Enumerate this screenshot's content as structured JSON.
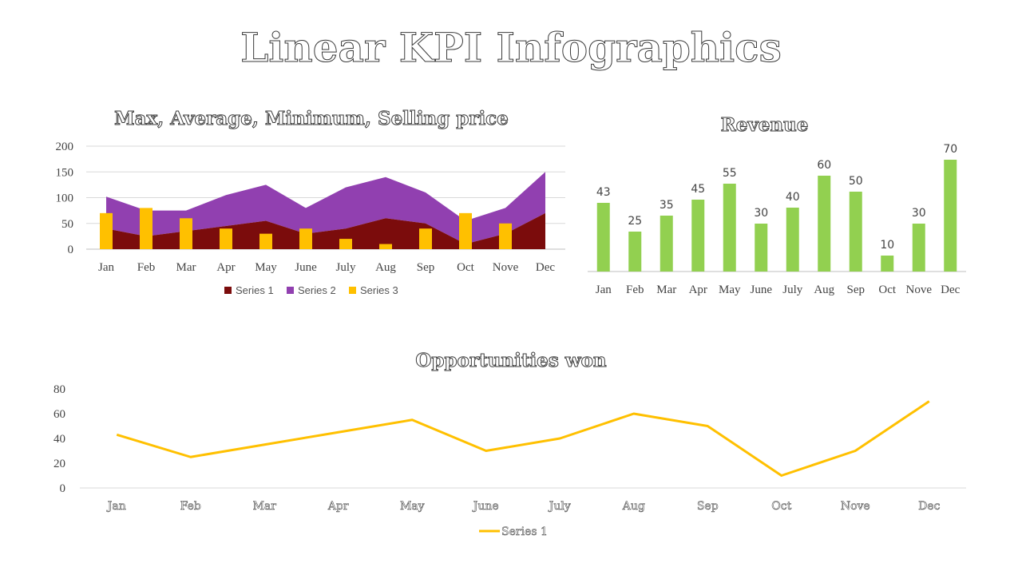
{
  "page_title": "Linear KPI Infographics",
  "chart_data": [
    {
      "type": "area",
      "title": "Max, Average, Minimum, Selling price",
      "categories": [
        "Jan",
        "Feb",
        "Mar",
        "Apr",
        "May",
        "June",
        "July",
        "Aug",
        "Sep",
        "Oct",
        "Nove",
        "Dec"
      ],
      "ylim": [
        0,
        200
      ],
      "yticks": [
        0,
        50,
        100,
        150,
        200
      ],
      "grid": true,
      "legend": "bottom",
      "series": [
        {
          "name": "Series 1",
          "type": "area",
          "color": "#7b0c0c",
          "values": [
            40,
            25,
            35,
            45,
            55,
            30,
            40,
            60,
            50,
            10,
            30,
            70
          ]
        },
        {
          "name": "Series 2",
          "type": "area",
          "color": "#9140b0",
          "values": [
            62,
            50,
            40,
            60,
            70,
            50,
            80,
            80,
            60,
            45,
            50,
            80
          ]
        },
        {
          "name": "Series 3",
          "type": "bar",
          "color": "#ffc000",
          "values": [
            70,
            80,
            60,
            40,
            30,
            40,
            20,
            10,
            40,
            70,
            50,
            0
          ]
        }
      ]
    },
    {
      "type": "bar",
      "title": "Revenue",
      "categories": [
        "Jan",
        "Feb",
        "Mar",
        "Apr",
        "May",
        "June",
        "July",
        "Aug",
        "Sep",
        "Oct",
        "Nove",
        "Dec"
      ],
      "values": [
        43,
        25,
        35,
        45,
        55,
        30,
        40,
        60,
        50,
        10,
        30,
        70
      ],
      "ylim": [
        0,
        70
      ],
      "color": "#92d050",
      "data_labels": true,
      "grid": false
    },
    {
      "type": "line",
      "title": "Opportunities won",
      "categories": [
        "Jan",
        "Feb",
        "Mar",
        "Apr",
        "May",
        "June",
        "July",
        "Aug",
        "Sep",
        "Oct",
        "Nove",
        "Dec"
      ],
      "ylim": [
        0,
        80
      ],
      "yticks": [
        0,
        20,
        40,
        60,
        80
      ],
      "grid": false,
      "legend": "bottom",
      "series": [
        {
          "name": "Series 1",
          "color": "#ffc000",
          "values": [
            43,
            25,
            35,
            45,
            55,
            30,
            40,
            60,
            50,
            10,
            30,
            70
          ]
        }
      ]
    }
  ]
}
